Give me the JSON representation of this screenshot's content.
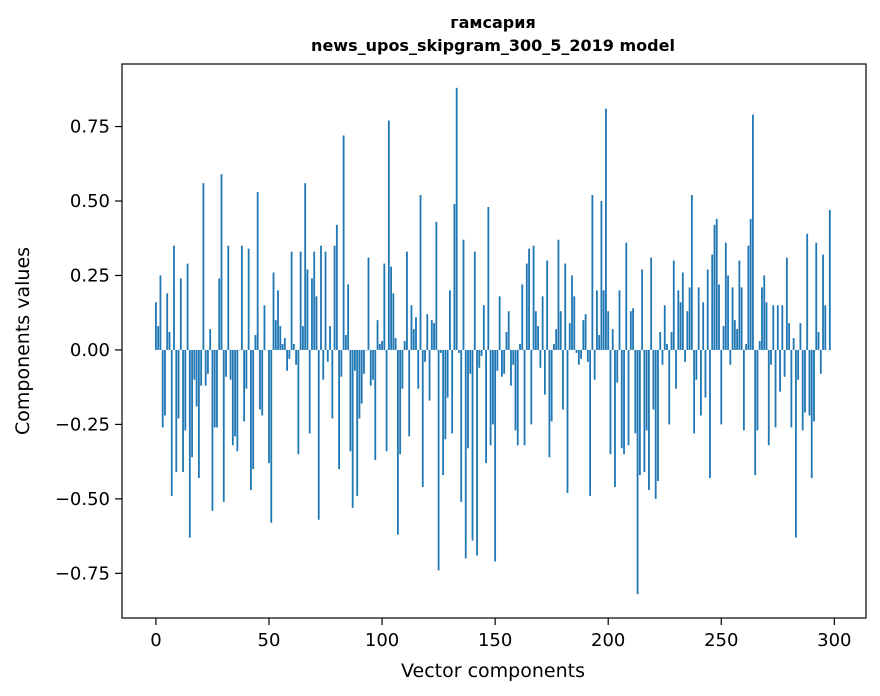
{
  "chart_data": {
    "type": "bar",
    "title": "гамсария",
    "subtitle": "news_upos_skipgram_300_5_2019 model",
    "xlabel": "Vector components",
    "ylabel": "Components values",
    "xlim": [
      -15,
      314
    ],
    "ylim": [
      -0.9,
      0.96
    ],
    "xticks": [
      0,
      50,
      100,
      150,
      200,
      250,
      300
    ],
    "xtick_labels": [
      "0",
      "50",
      "100",
      "150",
      "200",
      "250",
      "300"
    ],
    "yticks": [
      -0.75,
      -0.5,
      -0.25,
      0.0,
      0.25,
      0.5,
      0.75
    ],
    "ytick_labels": [
      "−0.75",
      "−0.50",
      "−0.25",
      "0.00",
      "0.25",
      "0.50",
      "0.75"
    ],
    "bar_color": "#1f77b4",
    "values": [
      0.16,
      0.08,
      0.25,
      -0.26,
      -0.22,
      0.19,
      0.06,
      -0.49,
      0.35,
      -0.41,
      -0.23,
      0.24,
      -0.41,
      -0.27,
      0.29,
      -0.63,
      -0.36,
      -0.1,
      -0.19,
      -0.43,
      -0.12,
      0.56,
      -0.12,
      -0.08,
      0.07,
      -0.54,
      -0.26,
      -0.26,
      0.24,
      0.59,
      -0.51,
      -0.09,
      0.35,
      -0.1,
      -0.32,
      -0.29,
      -0.34,
      0.0,
      0.35,
      -0.24,
      -0.13,
      0.34,
      -0.47,
      -0.4,
      0.05,
      0.53,
      -0.2,
      -0.22,
      0.15,
      0.0,
      -0.38,
      -0.58,
      0.26,
      0.1,
      0.2,
      0.08,
      0.02,
      0.04,
      -0.07,
      -0.03,
      0.33,
      0.02,
      -0.05,
      -0.35,
      0.33,
      0.08,
      0.56,
      0.27,
      -0.28,
      0.24,
      0.33,
      0.18,
      -0.57,
      0.35,
      -0.1,
      0.33,
      -0.04,
      0.08,
      -0.23,
      0.35,
      0.42,
      -0.4,
      -0.09,
      0.72,
      0.05,
      0.22,
      -0.34,
      -0.53,
      -0.07,
      -0.49,
      -0.23,
      -0.18,
      -0.08,
      0.0,
      0.31,
      -0.12,
      -0.1,
      -0.37,
      0.1,
      0.02,
      0.03,
      0.29,
      -0.34,
      0.77,
      0.28,
      0.19,
      0.04,
      -0.62,
      -0.35,
      -0.13,
      0.03,
      0.33,
      -0.29,
      0.15,
      0.07,
      0.11,
      -0.13,
      0.52,
      -0.46,
      -0.04,
      0.12,
      -0.17,
      0.1,
      0.09,
      0.43,
      -0.74,
      -0.01,
      -0.42,
      -0.3,
      -0.16,
      0.2,
      -0.28,
      0.49,
      0.88,
      -0.01,
      -0.51,
      0.37,
      -0.7,
      -0.33,
      -0.08,
      -0.64,
      0.33,
      -0.69,
      -0.06,
      -0.02,
      0.15,
      -0.38,
      0.48,
      -0.32,
      -0.25,
      -0.71,
      -0.07,
      0.18,
      -0.09,
      -0.08,
      0.06,
      0.13,
      -0.12,
      -0.05,
      -0.27,
      -0.32,
      0.02,
      0.22,
      -0.32,
      0.29,
      0.34,
      -0.25,
      0.35,
      0.13,
      0.08,
      -0.06,
      0.18,
      -0.15,
      0.3,
      -0.36,
      -0.24,
      0.02,
      0.07,
      0.37,
      0.13,
      -0.2,
      0.29,
      -0.48,
      0.09,
      0.25,
      0.18,
      -0.01,
      -0.05,
      -0.03,
      0.1,
      0.12,
      -0.04,
      -0.49,
      0.52,
      -0.1,
      0.2,
      0.05,
      0.5,
      0.2,
      0.81,
      0.13,
      -0.35,
      0.07,
      -0.46,
      -0.11,
      0.2,
      -0.33,
      -0.35,
      0.36,
      -0.32,
      0.13,
      0.14,
      -0.28,
      -0.82,
      -0.42,
      0.27,
      -0.41,
      -0.27,
      -0.47,
      0.31,
      -0.2,
      -0.5,
      -0.44,
      0.06,
      -0.05,
      0.15,
      0.02,
      -0.25,
      0.06,
      0.3,
      -0.13,
      0.2,
      0.16,
      0.26,
      -0.04,
      0.13,
      0.21,
      0.52,
      -0.28,
      -0.1,
      0.21,
      -0.22,
      0.16,
      -0.16,
      0.27,
      -0.43,
      0.32,
      0.42,
      0.44,
      0.22,
      -0.25,
      0.08,
      0.36,
      0.25,
      -0.05,
      0.21,
      0.1,
      0.07,
      0.3,
      0.21,
      -0.27,
      0.02,
      0.35,
      0.44,
      0.79,
      -0.42,
      -0.27,
      0.03,
      0.21,
      0.25,
      0.16,
      -0.32,
      -0.05,
      0.15,
      -0.26,
      0.15,
      -0.14,
      0.15,
      -0.09,
      0.31,
      0.09,
      -0.26,
      0.04,
      -0.63,
      -0.1,
      0.09,
      -0.27,
      -0.21,
      0.39,
      -0.22,
      -0.43,
      -0.24,
      0.36,
      0.06,
      -0.08,
      0.32,
      0.15,
      0.0,
      0.47
    ]
  }
}
